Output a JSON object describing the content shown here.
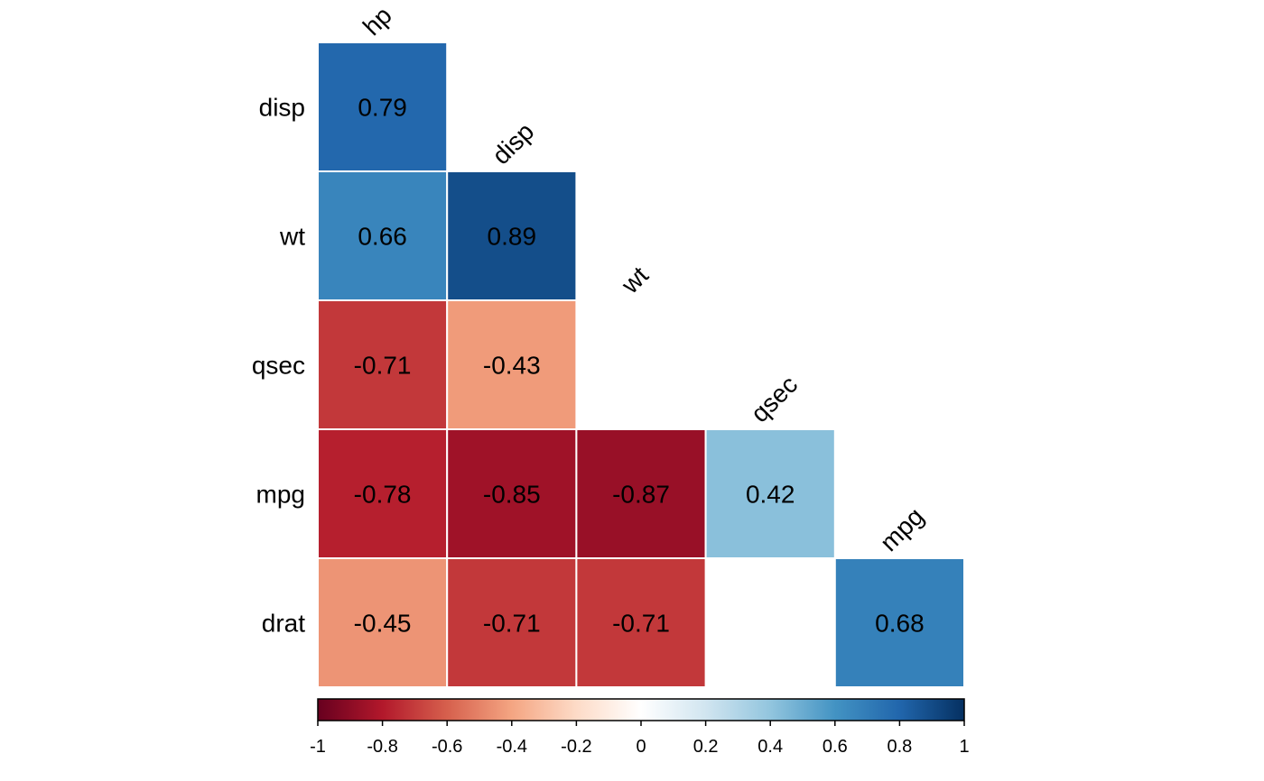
{
  "chart_data": {
    "type": "heatmap",
    "row_labels": [
      "disp",
      "wt",
      "qsec",
      "mpg",
      "drat"
    ],
    "col_labels": [
      "hp",
      "disp",
      "wt",
      "qsec",
      "mpg"
    ],
    "cells": [
      {
        "row": 0,
        "col": 0,
        "value": 0.79,
        "label": "0.79"
      },
      {
        "row": 1,
        "col": 0,
        "value": 0.66,
        "label": "0.66"
      },
      {
        "row": 1,
        "col": 1,
        "value": 0.89,
        "label": "0.89"
      },
      {
        "row": 2,
        "col": 0,
        "value": -0.71,
        "label": "-0.71"
      },
      {
        "row": 2,
        "col": 1,
        "value": -0.43,
        "label": "-0.43"
      },
      {
        "row": 3,
        "col": 0,
        "value": -0.78,
        "label": "-0.78"
      },
      {
        "row": 3,
        "col": 1,
        "value": -0.85,
        "label": "-0.85"
      },
      {
        "row": 3,
        "col": 2,
        "value": -0.87,
        "label": "-0.87"
      },
      {
        "row": 3,
        "col": 3,
        "value": 0.42,
        "label": "0.42"
      },
      {
        "row": 4,
        "col": 0,
        "value": -0.45,
        "label": "-0.45"
      },
      {
        "row": 4,
        "col": 1,
        "value": -0.71,
        "label": "-0.71"
      },
      {
        "row": 4,
        "col": 2,
        "value": -0.71,
        "label": "-0.71"
      },
      {
        "row": 4,
        "col": 4,
        "value": 0.68,
        "label": "0.68"
      }
    ],
    "colorbar": {
      "range": [
        -1,
        1
      ],
      "ticks": [
        -1,
        -0.8,
        -0.6,
        -0.4,
        -0.2,
        0,
        0.2,
        0.4,
        0.6,
        0.8,
        1
      ],
      "tick_labels": [
        "-1",
        "-0.8",
        "-0.6",
        "-0.4",
        "-0.2",
        "0",
        "0.2",
        "0.4",
        "0.6",
        "0.8",
        "1"
      ],
      "palette": [
        "#67001F",
        "#B2182B",
        "#D6604D",
        "#F4A582",
        "#FDDBC7",
        "#FFFFFF",
        "#D1E5F0",
        "#92C5DE",
        "#4393C3",
        "#2166AC",
        "#053061"
      ],
      "placement": "bottom"
    }
  }
}
